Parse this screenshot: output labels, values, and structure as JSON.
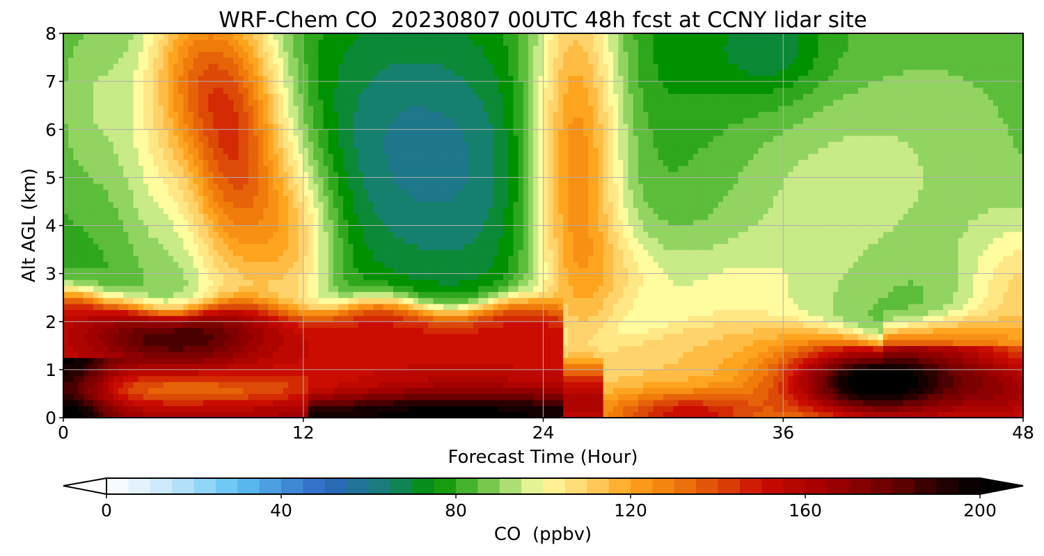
{
  "chart_data": {
    "type": "heatmap",
    "title": "WRF-Chem CO  20230807 00UTC 48h fcst at CCNY lidar site",
    "xlabel": "Forecast Time (Hour)",
    "ylabel": "Alt AGL (km)",
    "xlim": [
      0,
      48
    ],
    "ylim": [
      0,
      8
    ],
    "x_ticks": [
      0,
      12,
      24,
      36,
      48
    ],
    "y_ticks": [
      0,
      1,
      2,
      3,
      4,
      5,
      6,
      7,
      8
    ],
    "grid": true,
    "x": [
      0,
      1,
      2,
      3,
      4,
      5,
      6,
      7,
      8,
      9,
      10,
      11,
      12,
      13,
      14,
      15,
      16,
      17,
      18,
      19,
      20,
      21,
      22,
      23,
      24,
      25,
      26,
      27,
      28,
      29,
      30,
      31,
      32,
      33,
      34,
      35,
      36,
      37,
      38,
      39,
      40,
      41,
      42,
      43,
      44,
      45,
      46,
      47,
      48
    ],
    "y": [
      0,
      0.25,
      0.5,
      0.75,
      1,
      1.25,
      1.5,
      1.75,
      2,
      2.25,
      2.5,
      2.75,
      3,
      3.25,
      3.5,
      3.75,
      4,
      4.25,
      4.5,
      4.75,
      5,
      5.25,
      5.5,
      5.75,
      6,
      6.25,
      6.5,
      6.75,
      7,
      7.25,
      7.5,
      7.75,
      8
    ],
    "colorbar": {
      "label": "CO  (ppbv)",
      "ticks": [
        0,
        40,
        80,
        120,
        160,
        200
      ],
      "range": [
        0,
        200
      ],
      "extend": "both",
      "colors": [
        {
          "v": 0,
          "c": "#ffffff"
        },
        {
          "v": 15,
          "c": "#c4e6fb"
        },
        {
          "v": 30,
          "c": "#5ec3f3"
        },
        {
          "v": 50,
          "c": "#2e65c2"
        },
        {
          "v": 65,
          "c": "#16806e"
        },
        {
          "v": 75,
          "c": "#009100"
        },
        {
          "v": 85,
          "c": "#5cbd3a"
        },
        {
          "v": 95,
          "c": "#c8ea87"
        },
        {
          "v": 100,
          "c": "#fffb9f"
        },
        {
          "v": 110,
          "c": "#ffd36b"
        },
        {
          "v": 120,
          "c": "#ffa41f"
        },
        {
          "v": 130,
          "c": "#f07b0a"
        },
        {
          "v": 140,
          "c": "#dd4a08"
        },
        {
          "v": 150,
          "c": "#cb0c00"
        },
        {
          "v": 165,
          "c": "#a00000"
        },
        {
          "v": 180,
          "c": "#6a0000"
        },
        {
          "v": 190,
          "c": "#2a0000"
        },
        {
          "v": 200,
          "c": "#000000"
        }
      ]
    }
  }
}
